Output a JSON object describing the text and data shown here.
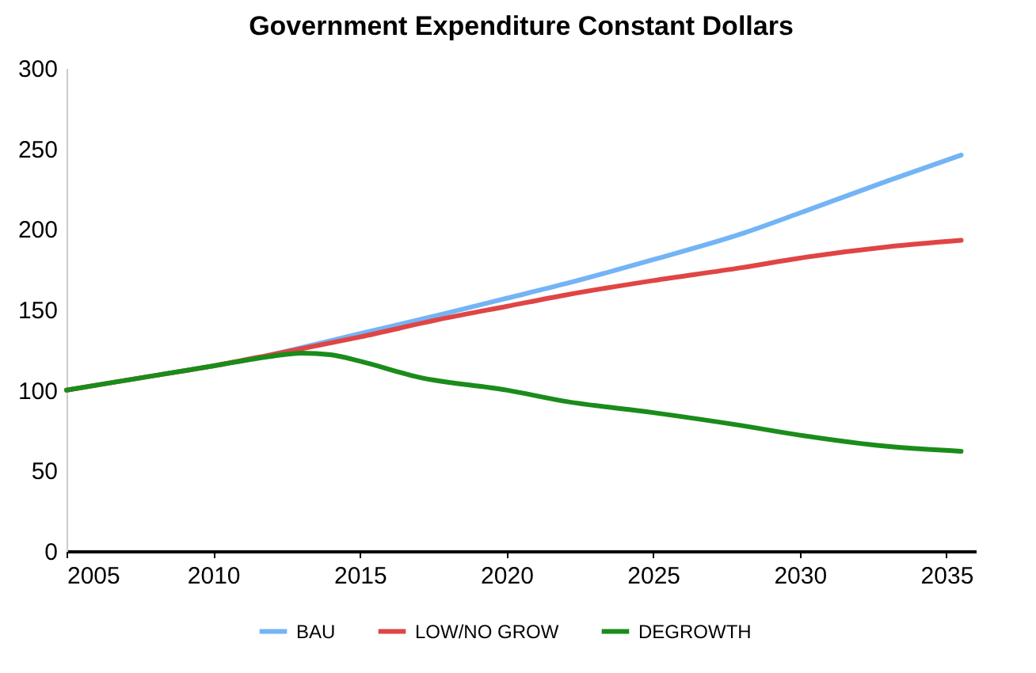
{
  "chart_data": {
    "type": "line",
    "title": "Government Expenditure Constant Dollars",
    "xlim": [
      2005,
      2036
    ],
    "xticks": [
      2005,
      2010,
      2015,
      2020,
      2025,
      2030,
      2035
    ],
    "ylim": [
      0,
      300
    ],
    "yticks": [
      0,
      50,
      100,
      150,
      200,
      250,
      300
    ],
    "grid": false,
    "legend": "bottom",
    "line_style": "solid",
    "series": [
      {
        "name": "BAU",
        "color": "#73b4f5",
        "x": [
          2012,
          2015,
          2018,
          2020,
          2022,
          2025,
          2028,
          2030,
          2033,
          2035.5
        ],
        "values": [
          122,
          135,
          148,
          157,
          166,
          181,
          197,
          210,
          230,
          246
        ]
      },
      {
        "name": "LOW/NO GROW",
        "color": "#e04545",
        "x": [
          2005,
          2008,
          2010,
          2012,
          2015,
          2018,
          2020,
          2022,
          2025,
          2028,
          2030,
          2033,
          2035.5
        ],
        "values": [
          100,
          109,
          115,
          122,
          133,
          145,
          152,
          159,
          168,
          176,
          182,
          189,
          193
        ]
      },
      {
        "name": "DEGROWTH",
        "color": "#1a8c1a",
        "x": [
          2005,
          2008,
          2010,
          2012,
          2013,
          2014,
          2015,
          2017,
          2020,
          2022,
          2025,
          2028,
          2030,
          2033,
          2035.5
        ],
        "values": [
          100,
          109,
          115,
          121,
          123,
          122,
          118,
          108,
          100,
          93,
          86,
          78,
          72,
          65,
          62
        ]
      }
    ]
  }
}
